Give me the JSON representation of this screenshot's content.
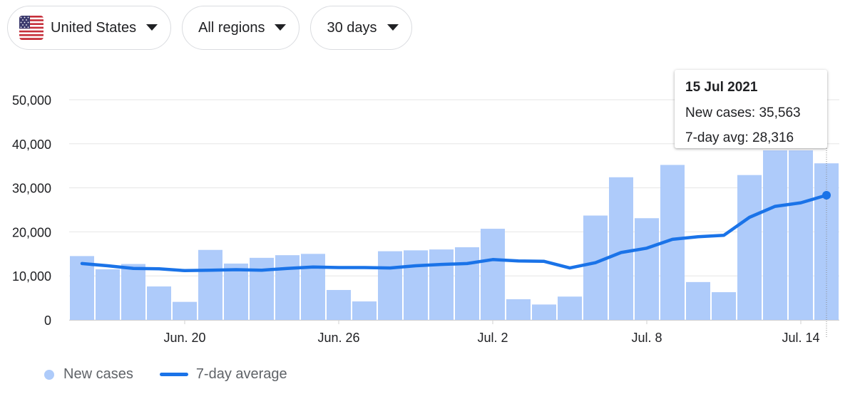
{
  "filters": {
    "country": {
      "label": "United States",
      "flag_icon": "us-flag-icon"
    },
    "region": {
      "label": "All regions"
    },
    "period": {
      "label": "30 days"
    }
  },
  "tooltip": {
    "date": "15 Jul 2021",
    "new_cases_label": "New cases",
    "new_cases_value": "35,563",
    "avg_label": "7-day avg",
    "avg_value": "28,316"
  },
  "legend": {
    "new_cases": "New cases",
    "avg": "7-day average"
  },
  "colors": {
    "bar": "#aecbfa",
    "line": "#1a73e8",
    "grid": "#e6e6e6",
    "axis_text": "#202124",
    "legend_text": "#5f6368"
  },
  "chart_data": {
    "type": "bar",
    "title": "",
    "xlabel": "",
    "ylabel": "",
    "ylim": [
      0,
      50000
    ],
    "yticks": [
      0,
      10000,
      20000,
      30000,
      40000,
      50000
    ],
    "ytick_labels": [
      "0",
      "10,000",
      "20,000",
      "30,000",
      "40,000",
      "50,000"
    ],
    "xtick_labels": [
      {
        "label": "Jun. 20",
        "index": 4
      },
      {
        "label": "Jun. 26",
        "index": 10
      },
      {
        "label": "Jul. 2",
        "index": 16
      },
      {
        "label": "Jul. 8",
        "index": 22
      },
      {
        "label": "Jul. 14",
        "index": 28
      }
    ],
    "categories": [
      "Jun 16",
      "Jun 17",
      "Jun 18",
      "Jun 19",
      "Jun 20",
      "Jun 21",
      "Jun 22",
      "Jun 23",
      "Jun 24",
      "Jun 25",
      "Jun 26",
      "Jun 27",
      "Jun 28",
      "Jun 29",
      "Jun 30",
      "Jul 1",
      "Jul 2",
      "Jul 3",
      "Jul 4",
      "Jul 5",
      "Jul 6",
      "Jul 7",
      "Jul 8",
      "Jul 9",
      "Jul 10",
      "Jul 11",
      "Jul 12",
      "Jul 13",
      "Jul 14",
      "Jul 15"
    ],
    "series": [
      {
        "name": "New cases",
        "type": "bar",
        "values": [
          14500,
          11500,
          12700,
          7600,
          4100,
          15900,
          12800,
          14100,
          14700,
          15000,
          6800,
          4200,
          15600,
          15800,
          16000,
          16500,
          20700,
          4700,
          3500,
          5300,
          23700,
          32400,
          23100,
          35200,
          8600,
          6300,
          32900,
          38500,
          38500,
          35563
        ]
      },
      {
        "name": "7-day average",
        "type": "line",
        "values": [
          12800,
          12300,
          11700,
          11600,
          11200,
          11300,
          11400,
          11300,
          11700,
          12000,
          11900,
          11900,
          11800,
          12300,
          12600,
          12800,
          13700,
          13400,
          13300,
          11800,
          13000,
          15300,
          16300,
          18300,
          18900,
          19200,
          23300,
          25800,
          26600,
          28316
        ]
      }
    ],
    "highlight_index": 29
  }
}
